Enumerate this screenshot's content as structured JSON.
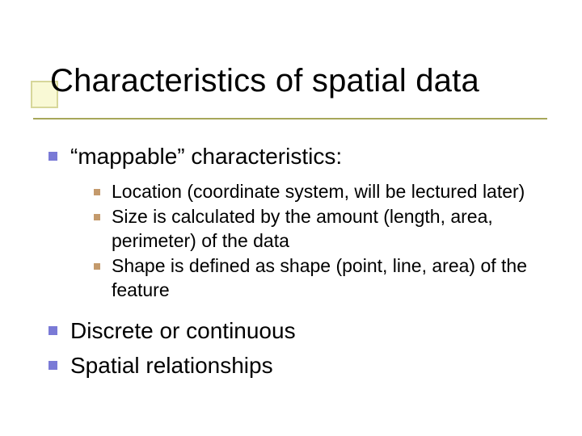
{
  "colors": {
    "background": "#ffffff",
    "text": "#000000",
    "accent_border": "#d7d79a",
    "accent_fill": "#f9f9d5",
    "rule": "#a7a75a",
    "bullet_lvl1": "#7a7ad6",
    "bullet_lvl2": "#c49a6c"
  },
  "title": {
    "text": "Characteristics of spatial data",
    "font_size_pt": 40,
    "font_family": "Verdana"
  },
  "body": {
    "lvl1_font_size_pt": 28,
    "lvl2_font_size_pt": 23,
    "items": [
      {
        "text": "“mappable” characteristics:",
        "children": [
          {
            "text": "Location (coordinate system, will be lectured later)"
          },
          {
            "text": "Size is calculated by the amount (length, area, perimeter) of the data"
          },
          {
            "text": "Shape is defined as shape (point, line, area) of the feature"
          }
        ]
      },
      {
        "text": "Discrete or continuous"
      },
      {
        "text": "Spatial relationships"
      }
    ]
  }
}
